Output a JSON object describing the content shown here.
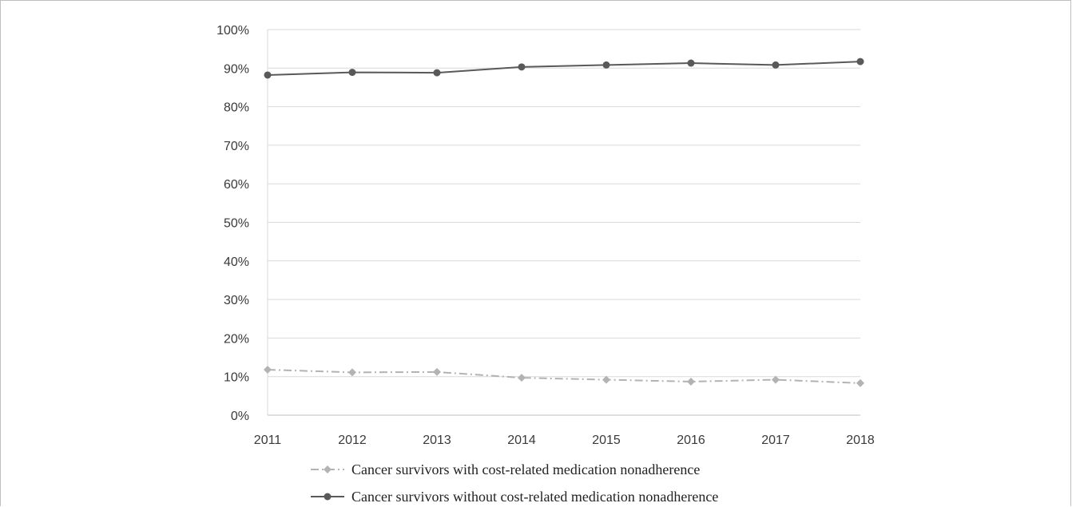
{
  "chart_data": {
    "type": "line",
    "title": "",
    "xlabel": "",
    "ylabel": "",
    "categories": [
      "2011",
      "2012",
      "2013",
      "2014",
      "2015",
      "2016",
      "2017",
      "2018"
    ],
    "y_ticks": [
      "0%",
      "10%",
      "20%",
      "30%",
      "40%",
      "50%",
      "60%",
      "70%",
      "80%",
      "90%",
      "100%"
    ],
    "ylim": [
      0,
      100
    ],
    "grid": "horizontal",
    "legend_position": "bottom",
    "series": [
      {
        "name": "Cancer survivors with cost-related medication nonadherence",
        "values": [
          11.8,
          11.1,
          11.2,
          9.7,
          9.2,
          8.7,
          9.2,
          8.3
        ],
        "color": "#b3b3b3",
        "line_style": "dash-dot",
        "marker": "diamond"
      },
      {
        "name": "Cancer survivors without cost-related medication nonadherence",
        "values": [
          88.2,
          88.9,
          88.8,
          90.3,
          90.8,
          91.3,
          90.8,
          91.7
        ],
        "color": "#595959",
        "line_style": "solid",
        "marker": "circle"
      }
    ]
  }
}
